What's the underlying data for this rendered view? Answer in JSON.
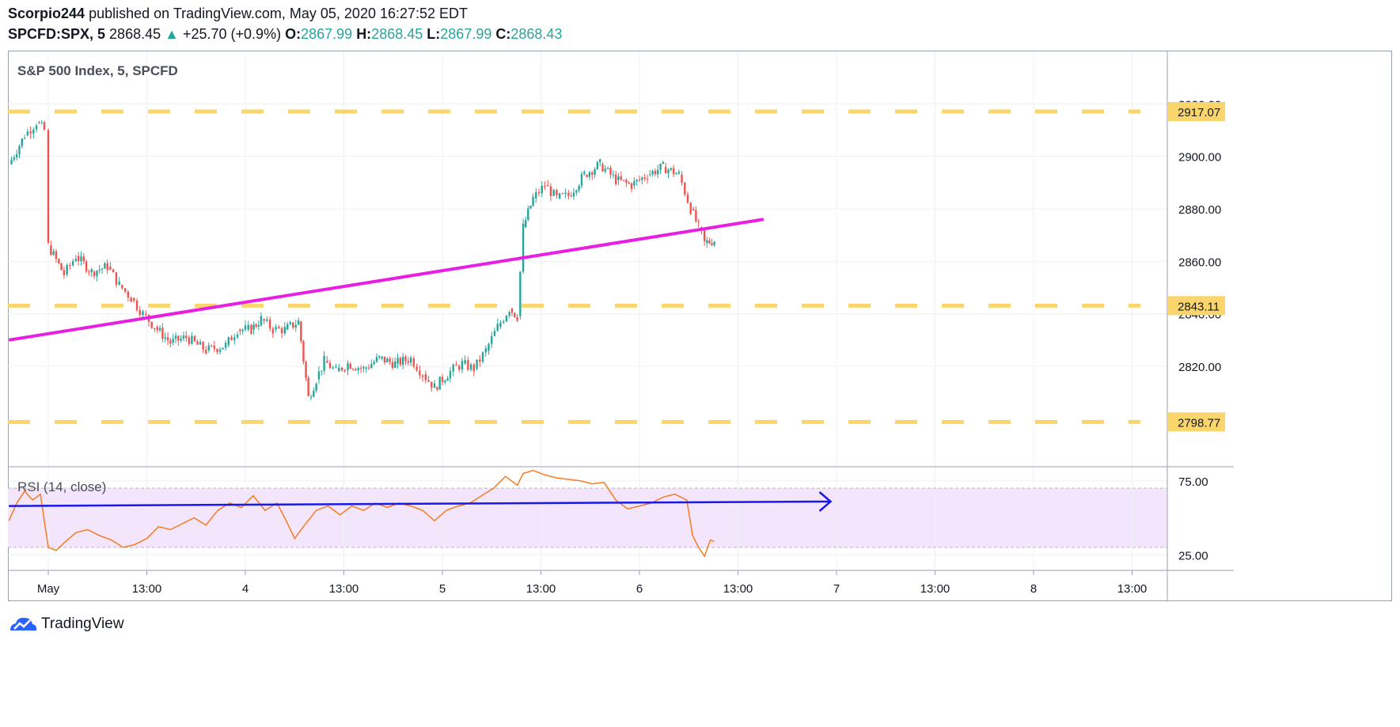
{
  "header": {
    "author": "Scorpio244",
    "published_text": "published on TradingView.com, May 05, 2020 16:27:52 EDT",
    "symbol": "SPCFD:SPX, 5",
    "last": "2868.45",
    "change": "+25.70 (+0.9%)",
    "o_label": "O:",
    "o": "2867.99",
    "h_label": "H:",
    "h": "2868.45",
    "l_label": "L:",
    "l": "2867.99",
    "c_label": "C:",
    "c": "2868.43"
  },
  "brand": {
    "name": "TradingView"
  },
  "colors": {
    "up": "#26a69a",
    "down": "#ef5350",
    "level": "#f9d56b",
    "trend": "#e91ee3",
    "rsi_line": "#f57c1f",
    "rsi_band": "#f3e5fb",
    "rsi_trend": "#1a1ae6"
  },
  "chart_data": [
    {
      "type": "candlestick",
      "title": "S&P 500 Index, 5, SPCFD",
      "x_ticks": [
        "May",
        "13:00",
        "4",
        "13:00",
        "5",
        "13:00",
        "6",
        "13:00",
        "7",
        "13:00",
        "8",
        "13:00"
      ],
      "y_ticks": [
        2820,
        2840,
        2860,
        2880,
        2900,
        2920
      ],
      "y_tick_labels": [
        "2820.00",
        "2840.00",
        "2860.00",
        "2880.00",
        "2900.00",
        "2920.00"
      ],
      "ylim": [
        2782,
        2940
      ],
      "horizontal_levels": [
        {
          "value": 2917.07,
          "label": "2917.07"
        },
        {
          "value": 2843.11,
          "label": "2843.11"
        },
        {
          "value": 2798.77,
          "label": "2798.77"
        }
      ],
      "trendline": {
        "x": [
          -0.2,
          3.63
        ],
        "y": [
          2830,
          2876
        ]
      },
      "close_series": [
        {
          "x": -0.2,
          "y": 2897
        },
        {
          "x": -0.12,
          "y": 2908
        },
        {
          "x": -0.06,
          "y": 2913
        },
        {
          "x": -0.02,
          "y": 2910
        },
        {
          "x": 0.0,
          "y": 2866
        },
        {
          "x": 0.08,
          "y": 2855
        },
        {
          "x": 0.14,
          "y": 2862
        },
        {
          "x": 0.22,
          "y": 2856
        },
        {
          "x": 0.3,
          "y": 2858
        },
        {
          "x": 0.36,
          "y": 2851
        },
        {
          "x": 0.42,
          "y": 2846
        },
        {
          "x": 0.48,
          "y": 2840
        },
        {
          "x": 0.54,
          "y": 2835
        },
        {
          "x": 0.62,
          "y": 2829
        },
        {
          "x": 0.7,
          "y": 2831
        },
        {
          "x": 0.8,
          "y": 2826
        },
        {
          "x": 0.9,
          "y": 2828
        },
        {
          "x": 0.96,
          "y": 2834
        },
        {
          "x": 1.03,
          "y": 2834
        },
        {
          "x": 1.08,
          "y": 2838
        },
        {
          "x": 1.14,
          "y": 2834
        },
        {
          "x": 1.2,
          "y": 2834
        },
        {
          "x": 1.0,
          "y": 2834
        },
        {
          "x": 1.27,
          "y": 2837
        },
        {
          "x": 1.32,
          "y": 2808
        },
        {
          "x": 1.36,
          "y": 2815
        },
        {
          "x": 1.4,
          "y": 2822
        },
        {
          "x": 1.46,
          "y": 2818
        },
        {
          "x": 1.52,
          "y": 2821
        },
        {
          "x": 1.6,
          "y": 2819
        },
        {
          "x": 1.68,
          "y": 2823
        },
        {
          "x": 1.76,
          "y": 2821
        },
        {
          "x": 1.84,
          "y": 2823
        },
        {
          "x": 1.9,
          "y": 2817
        },
        {
          "x": 1.96,
          "y": 2812
        },
        {
          "x": 2.04,
          "y": 2818
        },
        {
          "x": 2.1,
          "y": 2821
        },
        {
          "x": 2.16,
          "y": 2819
        },
        {
          "x": 2.22,
          "y": 2826
        },
        {
          "x": 2.28,
          "y": 2835
        },
        {
          "x": 2.34,
          "y": 2842
        },
        {
          "x": 2.38,
          "y": 2839
        },
        {
          "x": 2.41,
          "y": 2873
        },
        {
          "x": 2.46,
          "y": 2884
        },
        {
          "x": 2.52,
          "y": 2889
        },
        {
          "x": 2.58,
          "y": 2884
        },
        {
          "x": 2.64,
          "y": 2885
        },
        {
          "x": 2.72,
          "y": 2893
        },
        {
          "x": 2.8,
          "y": 2897
        },
        {
          "x": 2.88,
          "y": 2891
        },
        {
          "x": 2.96,
          "y": 2889
        },
        {
          "x": 3.04,
          "y": 2893
        },
        {
          "x": 3.12,
          "y": 2896
        },
        {
          "x": 3.2,
          "y": 2893
        },
        {
          "x": 3.26,
          "y": 2880
        },
        {
          "x": 3.3,
          "y": 2873
        },
        {
          "x": 3.33,
          "y": 2867
        },
        {
          "x": 3.38,
          "y": 2868
        }
      ]
    },
    {
      "type": "line",
      "title": "RSI (14, close)",
      "y_ticks": [
        25,
        75
      ],
      "y_tick_labels": [
        "25.00",
        "75.00"
      ],
      "ylim": [
        15,
        84
      ],
      "band": [
        30,
        70
      ],
      "trendline": {
        "x": [
          -0.2,
          3.97
        ],
        "y": [
          58,
          61
        ]
      },
      "series": [
        {
          "x": [
            -0.2,
            -0.16,
            -0.12,
            -0.08,
            -0.04,
            0.0,
            0.04,
            0.08,
            0.14,
            0.2,
            0.26,
            0.32,
            0.38,
            0.44,
            0.5,
            0.56,
            0.62,
            0.68,
            0.74,
            0.8,
            0.86,
            0.92,
            0.98,
            1.04,
            1.1,
            1.16,
            1.2,
            1.25,
            1.3,
            1.36,
            1.42,
            1.48,
            1.54,
            1.6,
            1.66,
            1.72,
            1.78,
            1.84,
            1.9,
            1.96,
            2.02,
            2.08,
            2.14,
            2.2,
            2.26,
            2.32,
            2.38,
            2.41,
            2.46,
            2.52,
            2.58,
            2.64,
            2.7,
            2.76,
            2.82,
            2.88,
            2.94,
            3.0,
            3.06,
            3.12,
            3.18,
            3.24,
            3.27,
            3.3,
            3.33,
            3.36,
            3.38
          ],
          "y": [
            48,
            60,
            68,
            62,
            66,
            30,
            28,
            33,
            40,
            42,
            38,
            35,
            30,
            32,
            36,
            44,
            42,
            46,
            50,
            45,
            55,
            60,
            57,
            65,
            55,
            60,
            50,
            36,
            45,
            55,
            58,
            52,
            58,
            55,
            60,
            57,
            60,
            58,
            55,
            48,
            55,
            58,
            60,
            65,
            70,
            78,
            72,
            80,
            82,
            79,
            77,
            76,
            75,
            73,
            74,
            62,
            56,
            58,
            60,
            64,
            66,
            62,
            38,
            30,
            24,
            35,
            34
          ]
        }
      ]
    }
  ]
}
